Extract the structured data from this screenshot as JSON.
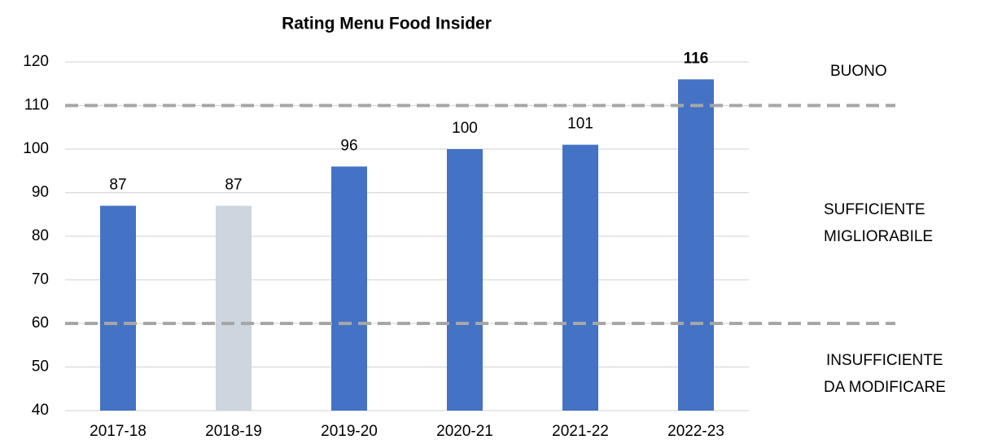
{
  "chart_data": {
    "type": "bar",
    "title": "Rating Menu Food Insider",
    "categories": [
      "2017-18",
      "2018-19",
      "2019-20",
      "2020-21",
      "2021-22",
      "2022-23"
    ],
    "values": [
      87,
      87,
      96,
      100,
      101,
      116
    ],
    "colors": [
      "#4472c4",
      "#cdd5df",
      "#4472c4",
      "#4472c4",
      "#4472c4",
      "#4472c4"
    ],
    "ylim": [
      40,
      120
    ],
    "yticks": [
      40,
      50,
      60,
      70,
      80,
      90,
      100,
      110,
      120
    ],
    "grid": true,
    "reference_lines": [
      {
        "value": 110,
        "color": "#a6a6a6",
        "dashed": true
      },
      {
        "value": 60,
        "color": "#a6a6a6",
        "dashed": true
      }
    ],
    "annotations": [
      [
        "BUONO"
      ],
      [
        "SUFFICIENTE",
        "MIGLIORABILE"
      ],
      [
        "INSUFFICIENTE",
        "DA MODIFICARE"
      ]
    ]
  }
}
